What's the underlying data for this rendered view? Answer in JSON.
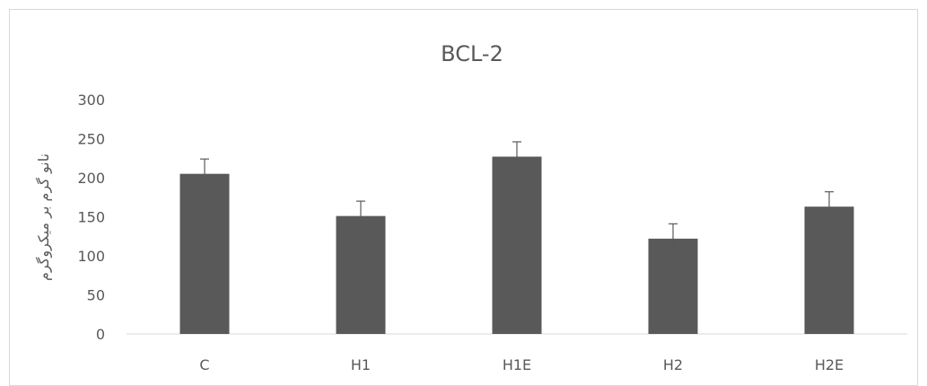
{
  "chart_data": {
    "type": "bar",
    "title": "BCL-2",
    "xlabel": "",
    "ylabel": "نانو گرم بر میکروگرم",
    "categories": [
      "C",
      "H1",
      "H1E",
      "H2",
      "H2E"
    ],
    "values": [
      205,
      151,
      227,
      122,
      163
    ],
    "error": [
      19,
      19,
      19,
      19,
      19
    ],
    "ylim": [
      0,
      300
    ],
    "yticks": [
      0,
      50,
      100,
      150,
      200,
      250,
      300
    ],
    "grid": false,
    "legend": "none",
    "bar_color": "#595959",
    "axis_color": "#d9d9d9",
    "text_color": "#595959"
  }
}
